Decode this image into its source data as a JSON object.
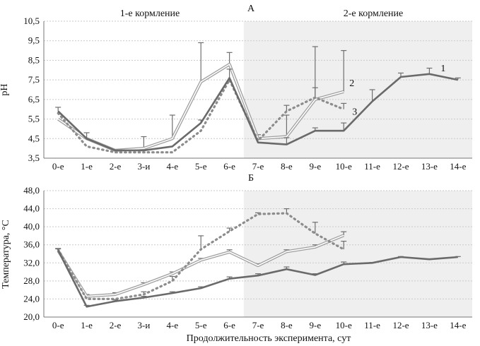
{
  "xlabel": "Продолжительность эксперимента, сут",
  "categories": [
    "0-е",
    "1-е",
    "2-е",
    "3-и",
    "4-е",
    "5-е",
    "6-е",
    "7-е",
    "8-е",
    "9-е",
    "10-е",
    "11-е",
    "12-е",
    "13-е",
    "14-е"
  ],
  "chart_data": [
    {
      "type": "line",
      "panel": "А",
      "title": "А",
      "section_labels": [
        "1-е кормление",
        "2-е кормление"
      ],
      "shaded_from_category": "7-е",
      "ylabel": "pH",
      "ylim": [
        3.5,
        10.5
      ],
      "yticks": [
        "3,5",
        "4,5",
        "5,5",
        "6,5",
        "7,5",
        "8,5",
        "9,5",
        "10,5"
      ],
      "grid": true,
      "series": [
        {
          "name": "1",
          "style": "solid dark gray",
          "values": [
            5.9,
            4.5,
            3.9,
            3.9,
            4.1,
            5.3,
            7.6,
            4.3,
            4.2,
            4.9,
            4.9,
            6.4,
            7.65,
            7.8,
            7.5
          ],
          "err": [
            0.2,
            0.3,
            0,
            0,
            0,
            0.15,
            0.45,
            0,
            0.35,
            0.15,
            0.4,
            0.6,
            0.2,
            0.3,
            0.1
          ]
        },
        {
          "name": "2",
          "style": "double light gray",
          "values": [
            5.5,
            4.5,
            3.9,
            4.0,
            4.5,
            7.4,
            8.3,
            4.5,
            4.6,
            6.5,
            6.9,
            null,
            null,
            null,
            null
          ],
          "err": [
            0,
            0,
            0,
            0.6,
            1.2,
            2.0,
            0.6,
            0.2,
            1.1,
            2.7,
            2.1,
            null,
            null,
            null,
            null
          ]
        },
        {
          "name": "3",
          "style": "dotted gray",
          "values": [
            5.8,
            4.1,
            3.8,
            3.8,
            3.8,
            4.9,
            7.5,
            4.4,
            5.9,
            6.6,
            6.0,
            null,
            null,
            null,
            null
          ],
          "err": [
            0,
            0,
            0,
            0,
            0,
            0,
            0,
            0,
            0.3,
            0.5,
            0.3,
            null,
            null,
            null,
            null
          ]
        }
      ]
    },
    {
      "type": "line",
      "panel": "Б",
      "title": "Б",
      "shaded_from_category": "7-е",
      "ylabel": "Температура, °С",
      "ylim": [
        20.0,
        48.0
      ],
      "yticks": [
        "20,0",
        "24,0",
        "28,0",
        "32,0",
        "36,0",
        "40,0",
        "44,0",
        "48,0"
      ],
      "grid": true,
      "series": [
        {
          "name": "1",
          "style": "solid dark gray",
          "values": [
            34.8,
            22.3,
            23.5,
            24.3,
            25.3,
            26.4,
            28.5,
            29.2,
            30.6,
            29.3,
            31.7,
            32.0,
            33.3,
            32.8,
            33.3
          ],
          "err": [
            0.4,
            0.3,
            0.3,
            0.3,
            0.3,
            0.3,
            0.4,
            0.4,
            0.5,
            0.3,
            0.5,
            0.1,
            0.1,
            0.1,
            0.1
          ]
        },
        {
          "name": "2",
          "style": "double light gray",
          "values": [
            34.7,
            24.6,
            25.0,
            27.2,
            29.6,
            32.6,
            34.4,
            31.4,
            34.5,
            35.5,
            38.1,
            null,
            null,
            null,
            null
          ],
          "err": [
            0.4,
            0.4,
            0.4,
            0.4,
            0.4,
            0.4,
            0.5,
            0.4,
            0.4,
            0.5,
            0.8,
            null,
            null,
            null,
            null
          ]
        },
        {
          "name": "3",
          "style": "dotted gray",
          "values": [
            35.0,
            24.0,
            24.0,
            25.0,
            28.0,
            35.0,
            39.0,
            42.8,
            43.0,
            38.5,
            35.0,
            null,
            null,
            null,
            null
          ],
          "err": [
            0,
            0,
            0,
            0.6,
            1.0,
            3.0,
            0.7,
            0.3,
            1.0,
            2.5,
            1.8,
            null,
            null,
            null,
            null
          ]
        }
      ]
    }
  ]
}
